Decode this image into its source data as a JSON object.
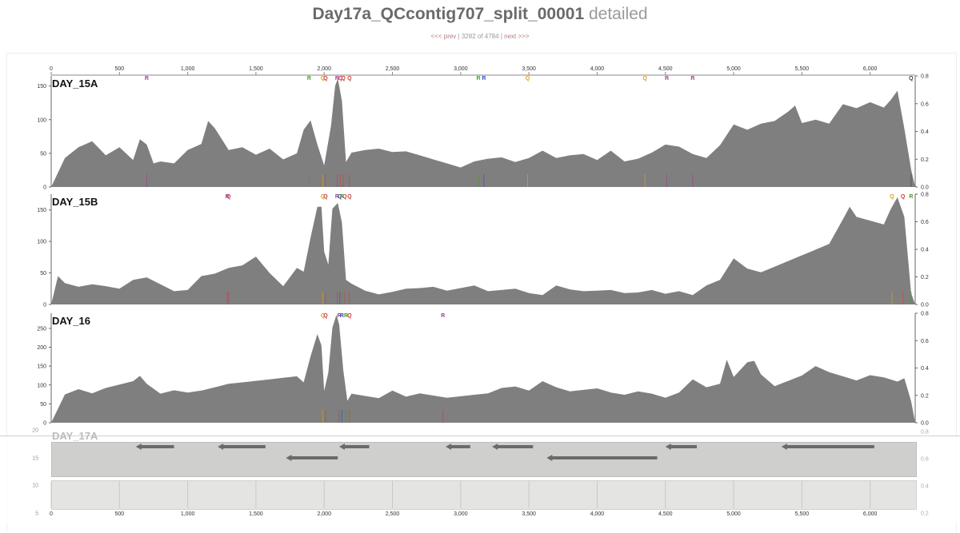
{
  "header": {
    "contig_name": "Day17a_QCcontig707_split_00001",
    "title_suffix": "detailed",
    "prev_label": "<<< prev",
    "position_text": "3282 of 4784",
    "next_label": "next >>>",
    "separator": "|"
  },
  "chart_data": [
    {
      "type": "area",
      "sample": "DAY_15A",
      "xlim": [
        0,
        6330
      ],
      "ylim_left": [
        0,
        165
      ],
      "yticks_left": [
        0,
        50,
        100,
        150
      ],
      "ylim_right": [
        0,
        0.8
      ],
      "yticks_right": [
        "0.0",
        "0.2",
        "0.4",
        "0.6",
        "0.8"
      ],
      "color": "#7f7f7f",
      "x": [
        0,
        100,
        200,
        300,
        400,
        500,
        600,
        650,
        700,
        750,
        800,
        900,
        1000,
        1100,
        1150,
        1200,
        1250,
        1300,
        1400,
        1500,
        1600,
        1700,
        1800,
        1850,
        1900,
        1950,
        2000,
        2050,
        2080,
        2100,
        2130,
        2160,
        2200,
        2300,
        2400,
        2500,
        2600,
        2700,
        2800,
        2900,
        3000,
        3100,
        3200,
        3300,
        3400,
        3500,
        3600,
        3700,
        3800,
        3900,
        4000,
        4100,
        4200,
        4300,
        4400,
        4500,
        4600,
        4700,
        4800,
        4900,
        5000,
        5100,
        5200,
        5300,
        5400,
        5450,
        5500,
        5600,
        5700,
        5800,
        5900,
        6000,
        6100,
        6150,
        6200,
        6250,
        6300,
        6330
      ],
      "y": [
        0,
        38,
        55,
        65,
        45,
        58,
        40,
        72,
        65,
        38,
        42,
        40,
        50,
        60,
        95,
        85,
        70,
        55,
        60,
        50,
        60,
        45,
        55,
        80,
        95,
        60,
        30,
        90,
        150,
        162,
        130,
        40,
        55,
        60,
        52,
        48,
        50,
        45,
        40,
        35,
        30,
        40,
        45,
        48,
        42,
        38,
        50,
        40,
        45,
        48,
        40,
        55,
        40,
        45,
        55,
        68,
        55,
        45,
        40,
        60,
        92,
        85,
        95,
        100,
        115,
        125,
        100,
        95,
        90,
        120,
        115,
        125,
        118,
        130,
        145,
        90,
        30,
        0
      ],
      "markers": [
        {
          "x": 700,
          "label": "R",
          "color": "#a0408c"
        },
        {
          "x": 1890,
          "label": "R",
          "color": "#4a9a30"
        },
        {
          "x": 1990,
          "label": "Q",
          "color": "#e0a020"
        },
        {
          "x": 2010,
          "label": "Q",
          "color": "#d04040"
        },
        {
          "x": 2095,
          "label": "R",
          "color": "#a0408c"
        },
        {
          "x": 2120,
          "label": "Q",
          "color": "#d04040"
        },
        {
          "x": 2140,
          "label": "Q",
          "color": "#d04040"
        },
        {
          "x": 2185,
          "label": "Q",
          "color": "#d04040"
        },
        {
          "x": 3130,
          "label": "R",
          "color": "#4a9a30"
        },
        {
          "x": 3170,
          "label": "R",
          "color": "#3050c0"
        },
        {
          "x": 3490,
          "label": "Q",
          "color": "#e0a020"
        },
        {
          "x": 4350,
          "label": "Q",
          "color": "#e0a020"
        },
        {
          "x": 4510,
          "label": "R",
          "color": "#a0408c"
        },
        {
          "x": 4700,
          "label": "R",
          "color": "#a0408c"
        },
        {
          "x": 6300,
          "label": "Q",
          "color": "#444444"
        }
      ]
    },
    {
      "type": "area",
      "sample": "DAY_15B",
      "xlim": [
        0,
        6330
      ],
      "ylim_left": [
        0,
        175
      ],
      "yticks_left": [
        0,
        50,
        100,
        150
      ],
      "ylim_right": [
        0,
        0.8
      ],
      "yticks_right": [
        "0.0",
        "0.2",
        "0.4",
        "0.6",
        "0.8"
      ],
      "color": "#7f7f7f",
      "x": [
        0,
        50,
        100,
        200,
        300,
        400,
        500,
        600,
        700,
        800,
        900,
        1000,
        1100,
        1200,
        1300,
        1400,
        1500,
        1600,
        1700,
        1800,
        1850,
        1900,
        1950,
        1980,
        2000,
        2030,
        2060,
        2100,
        2130,
        2160,
        2200,
        2300,
        2400,
        2500,
        2600,
        2700,
        2800,
        2900,
        3000,
        3100,
        3200,
        3300,
        3400,
        3500,
        3600,
        3700,
        3800,
        3900,
        4000,
        4100,
        4200,
        4300,
        4400,
        4500,
        4600,
        4700,
        4800,
        4900,
        5000,
        5100,
        5200,
        5300,
        5400,
        5500,
        5600,
        5700,
        5800,
        5850,
        5900,
        6000,
        6100,
        6150,
        6200,
        6250,
        6300,
        6330
      ],
      "y": [
        0,
        40,
        30,
        25,
        30,
        28,
        25,
        40,
        45,
        35,
        25,
        28,
        40,
        45,
        55,
        60,
        75,
        50,
        30,
        60,
        55,
        110,
        160,
        150,
        80,
        60,
        150,
        160,
        130,
        40,
        35,
        25,
        20,
        25,
        20,
        22,
        25,
        20,
        25,
        30,
        22,
        25,
        28,
        22,
        20,
        25,
        20,
        18,
        20,
        22,
        18,
        20,
        25,
        20,
        25,
        20,
        25,
        35,
        70,
        55,
        50,
        60,
        70,
        80,
        90,
        100,
        140,
        150,
        135,
        130,
        125,
        150,
        170,
        140,
        20,
        0
      ],
      "markers": [
        {
          "x": 1300,
          "label": "Q",
          "color": "#d04040"
        },
        {
          "x": 1290,
          "label": "R",
          "color": "#a0408c"
        },
        {
          "x": 1990,
          "label": "Q",
          "color": "#e0a020"
        },
        {
          "x": 2010,
          "label": "Q",
          "color": "#d04040"
        },
        {
          "x": 2095,
          "label": "R",
          "color": "#a0408c"
        },
        {
          "x": 2115,
          "label": "Q",
          "color": "#3050c0"
        },
        {
          "x": 2130,
          "label": "R",
          "color": "#4a9a30"
        },
        {
          "x": 2150,
          "label": "Q",
          "color": "#d04040"
        },
        {
          "x": 2185,
          "label": "Q",
          "color": "#d04040"
        },
        {
          "x": 6160,
          "label": "Q",
          "color": "#e0a020"
        },
        {
          "x": 6240,
          "label": "Q",
          "color": "#d04040"
        },
        {
          "x": 6300,
          "label": "R",
          "color": "#4a9a30"
        }
      ]
    },
    {
      "type": "area",
      "sample": "DAY_16",
      "xlim": [
        0,
        6330
      ],
      "ylim_left": [
        0,
        290
      ],
      "yticks_left": [
        0,
        50,
        100,
        150,
        200,
        250
      ],
      "ylim_right": [
        0,
        0.8
      ],
      "yticks_right": [
        "0.0",
        "0.2",
        "0.4",
        "0.6",
        "0.8"
      ],
      "color": "#7f7f7f",
      "x": [
        0,
        100,
        200,
        300,
        400,
        500,
        600,
        650,
        700,
        800,
        900,
        1000,
        1100,
        1200,
        1300,
        1400,
        1500,
        1600,
        1700,
        1800,
        1850,
        1900,
        1950,
        1980,
        2000,
        2030,
        2060,
        2090,
        2110,
        2140,
        2170,
        2200,
        2300,
        2400,
        2500,
        2600,
        2700,
        2800,
        2900,
        3000,
        3100,
        3200,
        3300,
        3400,
        3500,
        3600,
        3700,
        3800,
        3900,
        4000,
        4100,
        4200,
        4300,
        4400,
        4500,
        4600,
        4700,
        4800,
        4900,
        4950,
        5000,
        5100,
        5150,
        5200,
        5300,
        5400,
        5500,
        5600,
        5700,
        5800,
        5900,
        6000,
        6100,
        6200,
        6250,
        6300,
        6330
      ],
      "y": [
        0,
        70,
        85,
        75,
        90,
        100,
        110,
        125,
        105,
        80,
        90,
        85,
        80,
        90,
        100,
        105,
        110,
        115,
        120,
        125,
        110,
        180,
        240,
        200,
        80,
        130,
        250,
        285,
        260,
        140,
        60,
        80,
        75,
        70,
        80,
        65,
        75,
        70,
        65,
        70,
        75,
        80,
        95,
        100,
        90,
        105,
        90,
        80,
        85,
        90,
        80,
        75,
        85,
        80,
        70,
        85,
        110,
        90,
        100,
        165,
        120,
        160,
        165,
        130,
        100,
        115,
        130,
        145,
        130,
        120,
        110,
        125,
        120,
        110,
        120,
        60,
        0
      ],
      "markers": [
        {
          "x": 1990,
          "label": "Q",
          "color": "#e0a020"
        },
        {
          "x": 2010,
          "label": "Q",
          "color": "#d04040"
        },
        {
          "x": 2110,
          "label": "R",
          "color": "#a0408c"
        },
        {
          "x": 2130,
          "label": "R",
          "color": "#3050c0"
        },
        {
          "x": 2160,
          "label": "R",
          "color": "#4a9a30"
        },
        {
          "x": 2185,
          "label": "Q",
          "color": "#d04040"
        },
        {
          "x": 2870,
          "label": "R",
          "color": "#a0408c"
        }
      ]
    }
  ],
  "x_ticks": [
    "0",
    "500",
    "1,000",
    "1,500",
    "2,000",
    "2,500",
    "3,000",
    "3,500",
    "4,000",
    "4,500",
    "5,000",
    "5,500",
    "6,000"
  ],
  "x_tick_values": [
    0,
    500,
    1000,
    1500,
    2000,
    2500,
    3000,
    3500,
    4000,
    4500,
    5000,
    5500,
    6000
  ],
  "lower_panel": {
    "sample": "DAY_17A",
    "left_ticks": [
      "5",
      "10",
      "15",
      "20"
    ],
    "right_ticks": [
      "0.2",
      "0.4",
      "0.6",
      "0.8"
    ],
    "genes": [
      {
        "start": 900,
        "end": 620
      },
      {
        "start": 1570,
        "end": 1220
      },
      {
        "start": 2330,
        "end": 2110
      },
      {
        "start": 3070,
        "end": 2890
      },
      {
        "start": 3530,
        "end": 3230
      },
      {
        "start": 4730,
        "end": 4500
      },
      {
        "start": 6030,
        "end": 5350
      },
      {
        "start": 2100,
        "end": 1720
      },
      {
        "start": 4440,
        "end": 3630
      }
    ]
  }
}
